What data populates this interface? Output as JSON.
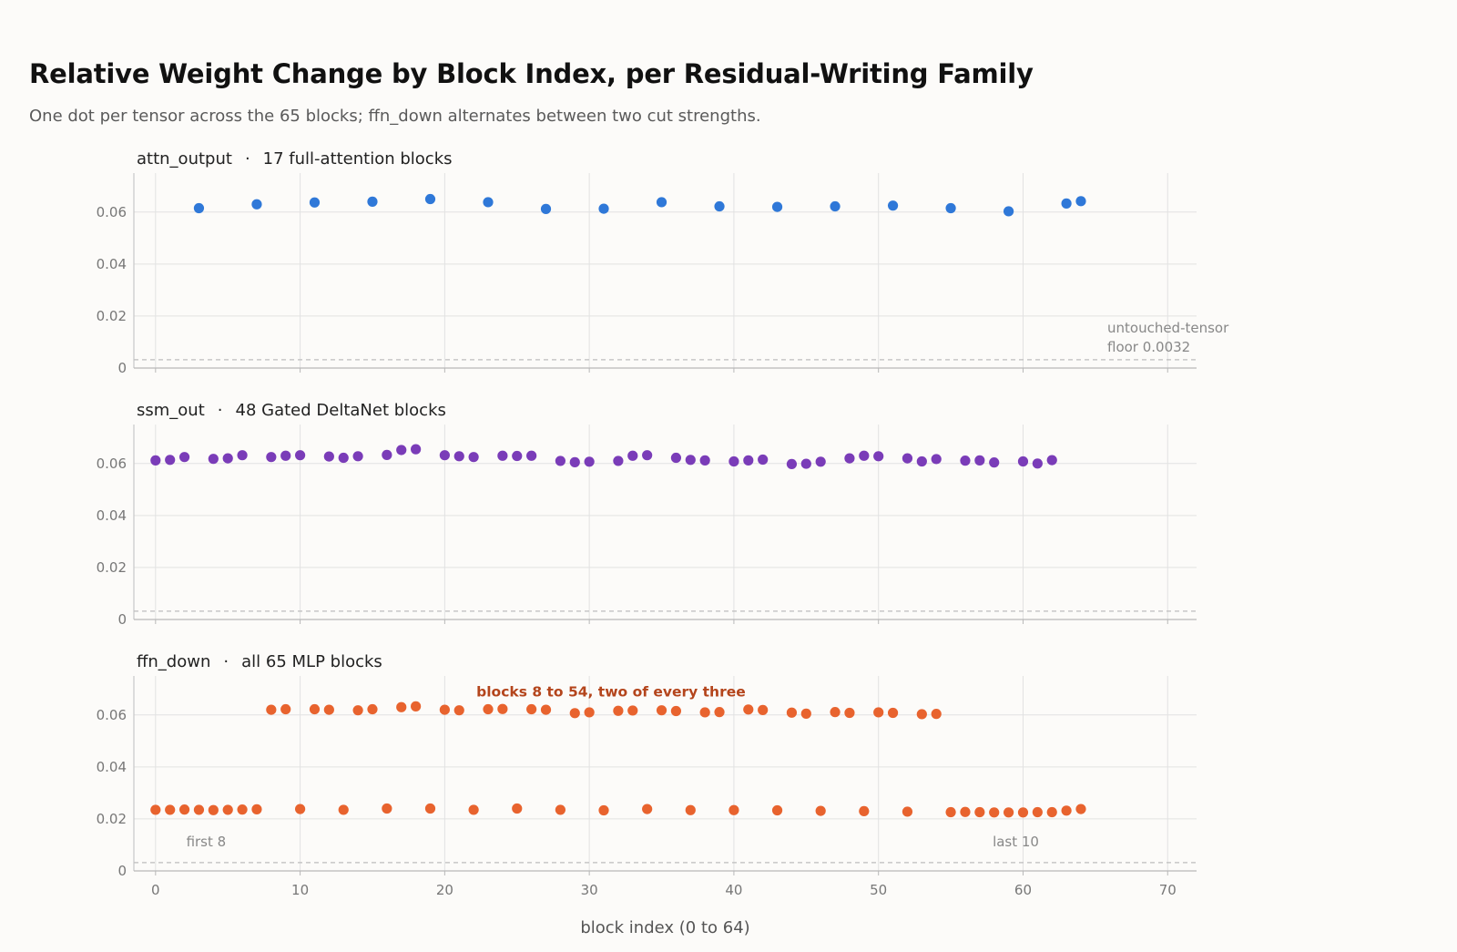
{
  "title": "Relative Weight Change by Block Index, per Residual-Writing Family",
  "subtitle": "One dot per tensor across the 65 blocks; ffn_down alternates between two cut strengths.",
  "chart_data": {
    "type": "scatter",
    "xlabel": "block index (0 to 64)",
    "xlim": [
      -1.5,
      72
    ],
    "xticks": [
      0,
      10,
      20,
      30,
      40,
      50,
      60,
      70
    ],
    "ylim": [
      0,
      0.075
    ],
    "yticks": [
      0,
      0.02,
      0.04,
      0.06
    ],
    "ytick_labels": [
      "0",
      "0.02",
      "0.04",
      "0.06"
    ],
    "grid": true,
    "floor": {
      "value": 0.0032,
      "label_line1": "untouched-tensor",
      "label_line2": "floor 0.0032"
    },
    "panels": [
      {
        "name": "attn_output",
        "separator": "·",
        "desc": "17 full-attention blocks",
        "color": "#2f78d8",
        "x": [
          3,
          7,
          11,
          15,
          19,
          23,
          27,
          31,
          35,
          39,
          43,
          47,
          51,
          55,
          59,
          63,
          64
        ],
        "y": [
          0.0615,
          0.063,
          0.0637,
          0.064,
          0.065,
          0.0638,
          0.0612,
          0.0613,
          0.0638,
          0.0622,
          0.062,
          0.0622,
          0.0625,
          0.0615,
          0.0603,
          0.0633,
          0.0642
        ]
      },
      {
        "name": "ssm_out",
        "separator": "·",
        "desc": "48 Gated DeltaNet blocks",
        "color": "#7a3cb8",
        "x": [
          0,
          1,
          2,
          4,
          5,
          6,
          8,
          9,
          10,
          12,
          13,
          14,
          16,
          17,
          18,
          20,
          21,
          22,
          24,
          25,
          26,
          28,
          29,
          30,
          32,
          33,
          34,
          36,
          37,
          38,
          40,
          41,
          42,
          44,
          45,
          46,
          48,
          49,
          50,
          52,
          53,
          54,
          56,
          57,
          58,
          60,
          61,
          62
        ],
        "y": [
          0.0612,
          0.0614,
          0.0625,
          0.0618,
          0.062,
          0.0632,
          0.0625,
          0.063,
          0.0632,
          0.0627,
          0.0622,
          0.0628,
          0.0633,
          0.0652,
          0.0655,
          0.0632,
          0.0628,
          0.0625,
          0.063,
          0.0629,
          0.063,
          0.061,
          0.0605,
          0.0607,
          0.061,
          0.063,
          0.0632,
          0.0622,
          0.0614,
          0.0612,
          0.0608,
          0.0612,
          0.0615,
          0.0598,
          0.0599,
          0.0607,
          0.062,
          0.063,
          0.0628,
          0.062,
          0.0608,
          0.0617,
          0.0611,
          0.0612,
          0.0604,
          0.0608,
          0.06,
          0.0613
        ]
      },
      {
        "name": "ffn_down",
        "separator": "·",
        "desc": "all 65 MLP blocks",
        "color": "#e8632e",
        "x": [
          0,
          1,
          2,
          3,
          4,
          5,
          6,
          7,
          8,
          9,
          10,
          11,
          12,
          13,
          14,
          15,
          16,
          17,
          18,
          19,
          20,
          21,
          22,
          23,
          24,
          25,
          26,
          27,
          28,
          29,
          30,
          31,
          32,
          33,
          34,
          35,
          36,
          37,
          38,
          39,
          40,
          41,
          42,
          43,
          44,
          45,
          46,
          47,
          48,
          49,
          50,
          51,
          52,
          53,
          54,
          55,
          56,
          57,
          58,
          59,
          60,
          61,
          62,
          63,
          64
        ],
        "y": [
          0.0235,
          0.0235,
          0.0236,
          0.0235,
          0.0234,
          0.0235,
          0.0236,
          0.0237,
          0.062,
          0.0622,
          0.0238,
          0.0622,
          0.062,
          0.0235,
          0.0618,
          0.0622,
          0.024,
          0.063,
          0.0633,
          0.024,
          0.062,
          0.0618,
          0.0235,
          0.0622,
          0.0623,
          0.024,
          0.0622,
          0.062,
          0.0235,
          0.0607,
          0.061,
          0.0233,
          0.0616,
          0.0617,
          0.0238,
          0.0618,
          0.0615,
          0.0234,
          0.061,
          0.0611,
          0.0234,
          0.0621,
          0.0619,
          0.0233,
          0.0609,
          0.0605,
          0.0231,
          0.0611,
          0.0608,
          0.023,
          0.061,
          0.0608,
          0.0228,
          0.0603,
          0.0604,
          0.0226,
          0.0227,
          0.0226,
          0.0225,
          0.0225,
          0.0225,
          0.0226,
          0.0226,
          0.0232,
          0.0238
        ],
        "annotations": [
          {
            "text": "blocks 8 to 54, two of every three",
            "x": 31.5,
            "y": 0.0672,
            "style": "strong"
          },
          {
            "text": "first 8",
            "x": 3.5,
            "y": 0.0095,
            "style": "muted"
          },
          {
            "text": "last 10",
            "x": 59.5,
            "y": 0.0095,
            "style": "muted"
          }
        ]
      }
    ]
  }
}
